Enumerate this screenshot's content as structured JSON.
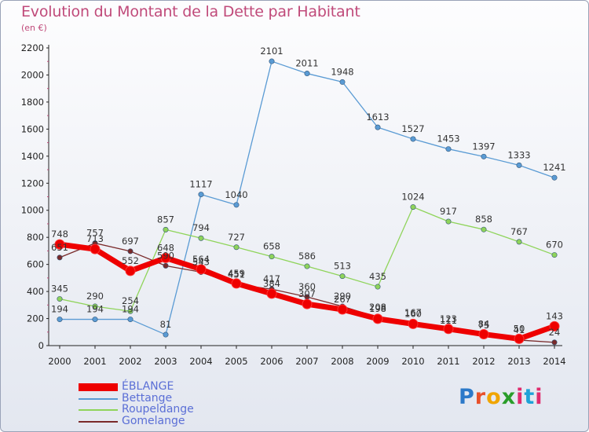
{
  "header": {
    "title": "Evolution du Montant de la Dette par Habitant",
    "subtitle": "(en €)"
  },
  "chart_data": {
    "type": "line",
    "title": "Evolution du Montant de la Dette par Habitant",
    "subtitle": "(en €)",
    "x": [
      "2000",
      "2001",
      "2002",
      "2003",
      "2004",
      "2005",
      "2006",
      "2007",
      "2008",
      "2009",
      "2010",
      "2011",
      "2012",
      "2013",
      "2014"
    ],
    "y_ticks": [
      "0",
      "200",
      "400",
      "600",
      "800",
      "1000",
      "1200",
      "1400",
      "1600",
      "1800",
      "2000",
      "2200"
    ],
    "ylim": [
      0,
      2200
    ],
    "grid": false,
    "legend_position": "bottom-left",
    "series": [
      {
        "name": "ÉBLANGE",
        "color": "#ee0000",
        "values": [
          748,
          713,
          552,
          648,
          564,
          459,
          384,
          307,
          267,
          198,
          160,
          123,
          84,
          50,
          143
        ]
      },
      {
        "name": "Bettange",
        "color": "#5a9bd4",
        "values": [
          194,
          194,
          194,
          81,
          1117,
          1040,
          2101,
          2011,
          1948,
          1613,
          1527,
          1453,
          1397,
          1333,
          1241
        ]
      },
      {
        "name": "Roupeldange",
        "color": "#8fd45a",
        "values": [
          345,
          290,
          254,
          857,
          794,
          727,
          658,
          586,
          513,
          435,
          1024,
          917,
          858,
          767,
          670
        ]
      },
      {
        "name": "Gomelange",
        "color": "#7a2a2a",
        "values": [
          651,
          757,
          697,
          590,
          543,
          451,
          417,
          360,
          290,
          208,
          167,
          111,
          75,
          41,
          24
        ]
      }
    ]
  },
  "logo": {
    "p": "P",
    "r": "r",
    "o": "o",
    "x": "x",
    "i": "i",
    "t": "t",
    "i2": "i"
  }
}
